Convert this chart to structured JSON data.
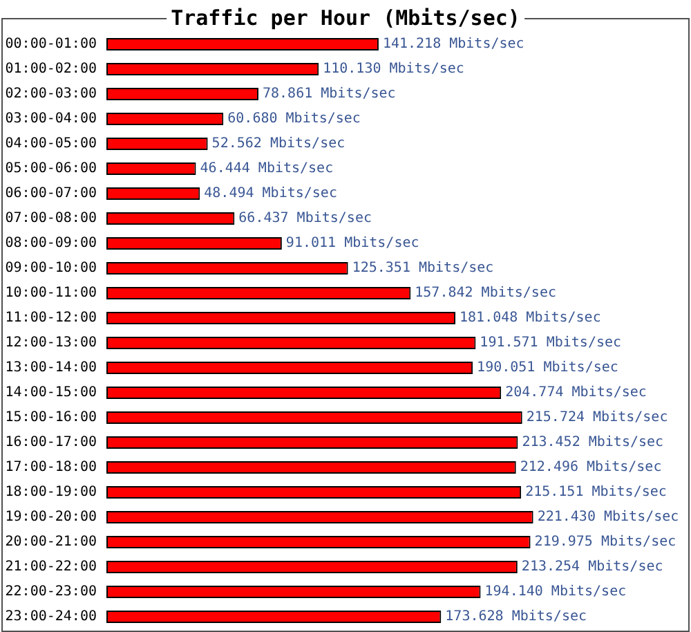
{
  "chart_data": {
    "type": "bar",
    "title": "Traffic per Hour (Mbits/sec)",
    "orientation": "horizontal",
    "tick_labels": "y",
    "grid": false,
    "legend": false,
    "categories": [
      "00:00-01:00",
      "01:00-02:00",
      "02:00-03:00",
      "03:00-04:00",
      "04:00-05:00",
      "05:00-06:00",
      "06:00-07:00",
      "07:00-08:00",
      "08:00-09:00",
      "09:00-10:00",
      "10:00-11:00",
      "11:00-12:00",
      "12:00-13:00",
      "13:00-14:00",
      "14:00-15:00",
      "15:00-16:00",
      "16:00-17:00",
      "17:00-18:00",
      "18:00-19:00",
      "19:00-20:00",
      "20:00-21:00",
      "21:00-22:00",
      "22:00-23:00",
      "23:00-24:00"
    ],
    "values": [
      141.218,
      110.13,
      78.861,
      60.68,
      52.562,
      46.444,
      48.494,
      66.437,
      91.011,
      125.351,
      157.842,
      181.048,
      191.571,
      190.051,
      204.774,
      215.724,
      213.452,
      212.496,
      215.151,
      221.43,
      219.975,
      213.254,
      194.14,
      173.628
    ],
    "value_labels": [
      "141.218 Mbits/sec",
      "110.130 Mbits/sec",
      "78.861 Mbits/sec",
      "60.680 Mbits/sec",
      "52.562 Mbits/sec",
      "46.444 Mbits/sec",
      "48.494 Mbits/sec",
      "66.437 Mbits/sec",
      "91.011 Mbits/sec",
      "125.351 Mbits/sec",
      "157.842 Mbits/sec",
      "181.048 Mbits/sec",
      "191.571 Mbits/sec",
      "190.051 Mbits/sec",
      "204.774 Mbits/sec",
      "215.724 Mbits/sec",
      "213.452 Mbits/sec",
      "212.496 Mbits/sec",
      "215.151 Mbits/sec",
      "221.430 Mbits/sec",
      "219.975 Mbits/sec",
      "213.254 Mbits/sec",
      "194.140 Mbits/sec",
      "173.628 Mbits/sec"
    ],
    "color": "#ff0000"
  }
}
